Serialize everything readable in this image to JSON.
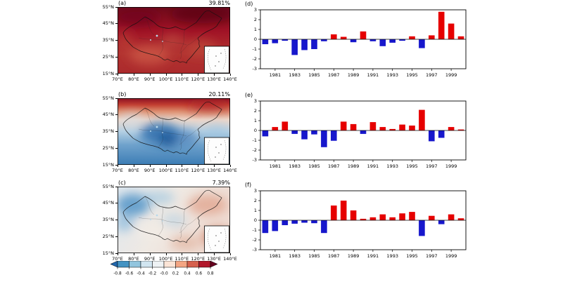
{
  "maps": {
    "panels": [
      {
        "label": "(a)",
        "variance": "39.81%",
        "pattern": "positive anomalies over whole domain, strongest in north"
      },
      {
        "label": "(b)",
        "variance": "20.11%",
        "pattern": "positive anomalies in far north, negative over central and southern China"
      },
      {
        "label": "(c)",
        "variance": "7.39%",
        "pattern": "negative anomalies in northwest, positive in east and southeast"
      }
    ],
    "axes": {
      "lat_ticks": [
        "55°N",
        "45°N",
        "35°N",
        "25°N",
        "15°N"
      ],
      "lon_ticks": [
        "70°E",
        "80°E",
        "90°E",
        "100°E",
        "110°E",
        "120°E",
        "130°E",
        "140°E"
      ]
    },
    "colorbar": {
      "tick_labels": [
        "-0.8",
        "-0.6",
        "-0.4",
        "-0.2",
        "-0.0",
        "0.2",
        "0.4",
        "0.6",
        "0.8"
      ],
      "segment_colors": [
        "#4393c3",
        "#92c5de",
        "#d1e5f0",
        "#eef2f4",
        "#fbe4d6",
        "#f4a582",
        "#d6604d",
        "#b2182b"
      ],
      "left_end_color": "#2166ac",
      "right_end_color": "#67001f"
    }
  },
  "style": {
    "positive_color": "#e60000",
    "negative_color": "#1717cc",
    "axis_color": "#000000"
  },
  "chart_data": [
    {
      "type": "bar",
      "label": "(d)",
      "x": [
        1980,
        1981,
        1982,
        1983,
        1984,
        1985,
        1986,
        1987,
        1988,
        1989,
        1990,
        1991,
        1992,
        1993,
        1994,
        1995,
        1996,
        1997,
        1998,
        1999,
        2000
      ],
      "values": [
        -0.5,
        -0.4,
        -0.15,
        -1.6,
        -1.1,
        -1.0,
        -0.2,
        0.5,
        0.25,
        -0.3,
        0.8,
        -0.2,
        -0.7,
        -0.35,
        -0.15,
        0.3,
        -0.9,
        0.4,
        2.8,
        1.6,
        0.3
      ],
      "ylim": [
        -3,
        3
      ],
      "yticks": [
        -3,
        -2,
        -1,
        0,
        1,
        2,
        3
      ],
      "xticks": [
        1981,
        1983,
        1985,
        1987,
        1989,
        1991,
        1993,
        1995,
        1997,
        1999
      ]
    },
    {
      "type": "bar",
      "label": "(e)",
      "x": [
        1980,
        1981,
        1982,
        1983,
        1984,
        1985,
        1986,
        1987,
        1988,
        1989,
        1990,
        1991,
        1992,
        1993,
        1994,
        1995,
        1996,
        1997,
        1998,
        1999,
        2000
      ],
      "values": [
        -0.6,
        0.35,
        0.9,
        -0.35,
        -0.9,
        -0.4,
        -1.7,
        -1.05,
        0.9,
        0.65,
        -0.35,
        0.85,
        0.35,
        0.15,
        0.6,
        0.5,
        2.1,
        -1.1,
        -0.75,
        0.35,
        0.1
      ],
      "ylim": [
        -3,
        3
      ],
      "yticks": [
        -3,
        -2,
        -1,
        0,
        1,
        2,
        3
      ],
      "xticks": [
        1981,
        1983,
        1985,
        1987,
        1989,
        1991,
        1993,
        1995,
        1997,
        1999
      ]
    },
    {
      "type": "bar",
      "label": "(f)",
      "x": [
        1980,
        1981,
        1982,
        1983,
        1984,
        1985,
        1986,
        1987,
        1988,
        1989,
        1990,
        1991,
        1992,
        1993,
        1994,
        1995,
        1996,
        1997,
        1998,
        1999,
        2000
      ],
      "values": [
        -1.3,
        -1.1,
        -0.5,
        -0.35,
        -0.25,
        -0.3,
        -1.3,
        1.5,
        2.0,
        1.0,
        0.15,
        0.3,
        0.6,
        0.3,
        0.7,
        0.85,
        -1.6,
        0.45,
        -0.4,
        0.6,
        0.2
      ],
      "ylim": [
        -3,
        3
      ],
      "yticks": [
        -3,
        -2,
        -1,
        0,
        1,
        2,
        3
      ],
      "xticks": [
        1981,
        1983,
        1985,
        1987,
        1989,
        1991,
        1993,
        1995,
        1997,
        1999
      ]
    }
  ]
}
